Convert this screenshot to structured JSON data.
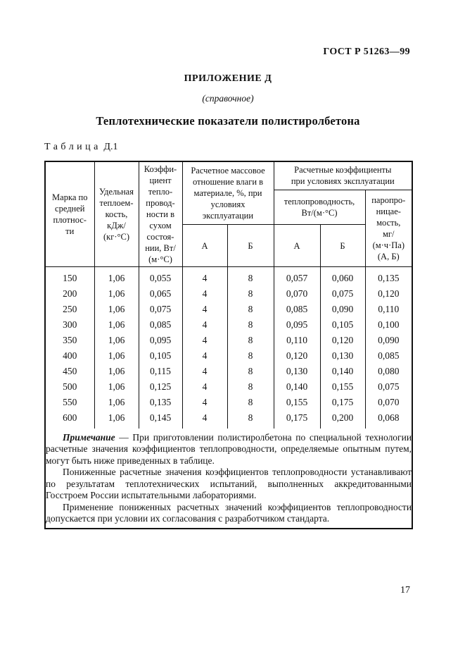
{
  "page": {
    "background": "#ffffff",
    "text_color": "#111111",
    "page_number": "17"
  },
  "header": {
    "doc_ref": "ГОСТ Р 51263—99",
    "appendix": "ПРИЛОЖЕНИЕ Д",
    "appendix_type": "(справочное)",
    "title": "Теплотехнические показатели полистиролбетона"
  },
  "table": {
    "caption_word": "Таблица",
    "caption_number": "Д.1",
    "header": {
      "col_mark": "Марка по\nсредней\nплотнос-\nти",
      "col_heat_capacity": "Удельная\nтеплоем-\nкость,\nкДж/\n(кг·°С)",
      "col_dry_conductivity": "Коэффи-\nциент\nтепло-\nпровод-\nности в\nсухом\nсостоя-\nнии, Вт/\n(м·°С)",
      "group_moisture": "Расчетное массовое\nотношение влаги в\nматериале, %, при\nусловиях\nэксплуатации",
      "group_design_coeffs": "Расчетные коэффициенты\nпри условиях эксплуатации",
      "sub_conductivity": "теплопроводность,\nВт/(м·°С)",
      "col_vapor_perm": "паропро-\nницае-\nмость,\nмг/\n(м·ч·Па)\n(А, Б)",
      "sub_a1": "А",
      "sub_b1": "Б",
      "sub_a2": "А",
      "sub_b2": "Б"
    },
    "rows": [
      [
        "150",
        "1,06",
        "0,055",
        "4",
        "8",
        "0,057",
        "0,060",
        "0,135"
      ],
      [
        "200",
        "1,06",
        "0,065",
        "4",
        "8",
        "0,070",
        "0,075",
        "0,120"
      ],
      [
        "250",
        "1,06",
        "0,075",
        "4",
        "8",
        "0,085",
        "0,090",
        "0,110"
      ],
      [
        "300",
        "1,06",
        "0,085",
        "4",
        "8",
        "0,095",
        "0,105",
        "0,100"
      ],
      [
        "350",
        "1,06",
        "0,095",
        "4",
        "8",
        "0,110",
        "0,120",
        "0,090"
      ],
      [
        "400",
        "1,06",
        "0,105",
        "4",
        "8",
        "0,120",
        "0,130",
        "0,085"
      ],
      [
        "450",
        "1,06",
        "0,115",
        "4",
        "8",
        "0,130",
        "0,140",
        "0,080"
      ],
      [
        "500",
        "1,06",
        "0,125",
        "4",
        "8",
        "0,140",
        "0,155",
        "0,075"
      ],
      [
        "550",
        "1,06",
        "0,135",
        "4",
        "8",
        "0,155",
        "0,175",
        "0,070"
      ],
      [
        "600",
        "1,06",
        "0,145",
        "4",
        "8",
        "0,175",
        "0,200",
        "0,068"
      ]
    ]
  },
  "note": {
    "label": "Примечание",
    "p1_rest": " — При приготовлении полистиролбетона по специальной технологии расчетные значения коэффициентов теплопроводности, определяемые опытным путем, могут быть ниже приведенных в таблице.",
    "p2": "Пониженные расчетные значения коэффициентов теплопроводности устанавливают по результатам теплотехнических испытаний, выполненных аккредитованными Госстроем России испытательными лабораториями.",
    "p3": "Применение пониженных расчетных значений коэффициентов теплопроводности допускается при условии их согласования с разработчиком стандарта."
  }
}
